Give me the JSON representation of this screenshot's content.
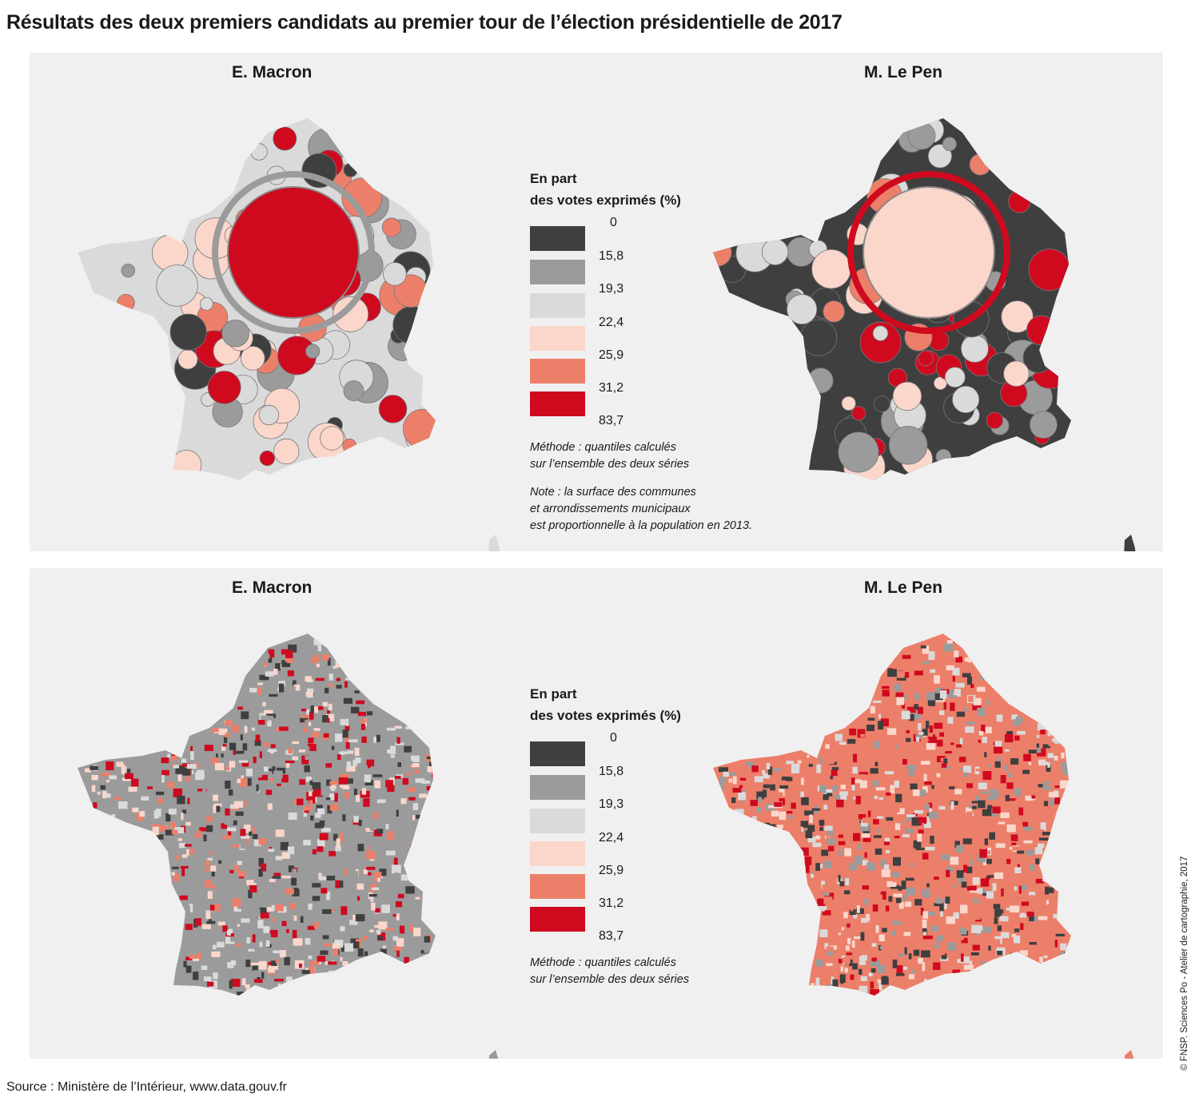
{
  "title": "Résultats des deux premiers candidats au premier tour de l’élection présidentielle de 2017",
  "legend": {
    "title_line1": "En part",
    "title_line2": "des votes exprimés (%)",
    "bounds": [
      "0",
      "15,8",
      "19,3",
      "22,4",
      "25,9",
      "31,2",
      "83,7"
    ],
    "class_colors": [
      "#3f3f3f",
      "#9b9b9b",
      "#dadada",
      "#fbd6cb",
      "#ec7f6a",
      "#cf0a1f"
    ],
    "method_line1": "Méthode : quantiles calculés",
    "method_line2": "sur l’ensemble des deux séries",
    "note_line1": "Note : la surface des communes",
    "note_line2": "et arrondissements municipaux",
    "note_line3": "est proportionnelle à la population en 2013."
  },
  "panels": {
    "top": {
      "map_type": "cartogram",
      "left_label": "E. Macron",
      "right_label": "M. Le Pen"
    },
    "bottom": {
      "map_type": "choropleth",
      "left_label": "E. Macron",
      "right_label": "M. Le Pen"
    }
  },
  "source": "Source : Ministère de l’Intérieur, www.data.gouv.fr",
  "credit": "© FNSP. Sciences Po - Atelier de cartographie, 2017",
  "map_palettes": {
    "macron": [
      "#9b9b9b",
      "#dadada",
      "#fbd6cb",
      "#ec7f6a",
      "#3f3f3f",
      "#cf0a1f"
    ],
    "lepen": [
      "#cf0a1f",
      "#3f3f3f",
      "#ec7f6a",
      "#9b9b9b",
      "#dadada",
      "#fbd6cb"
    ]
  }
}
